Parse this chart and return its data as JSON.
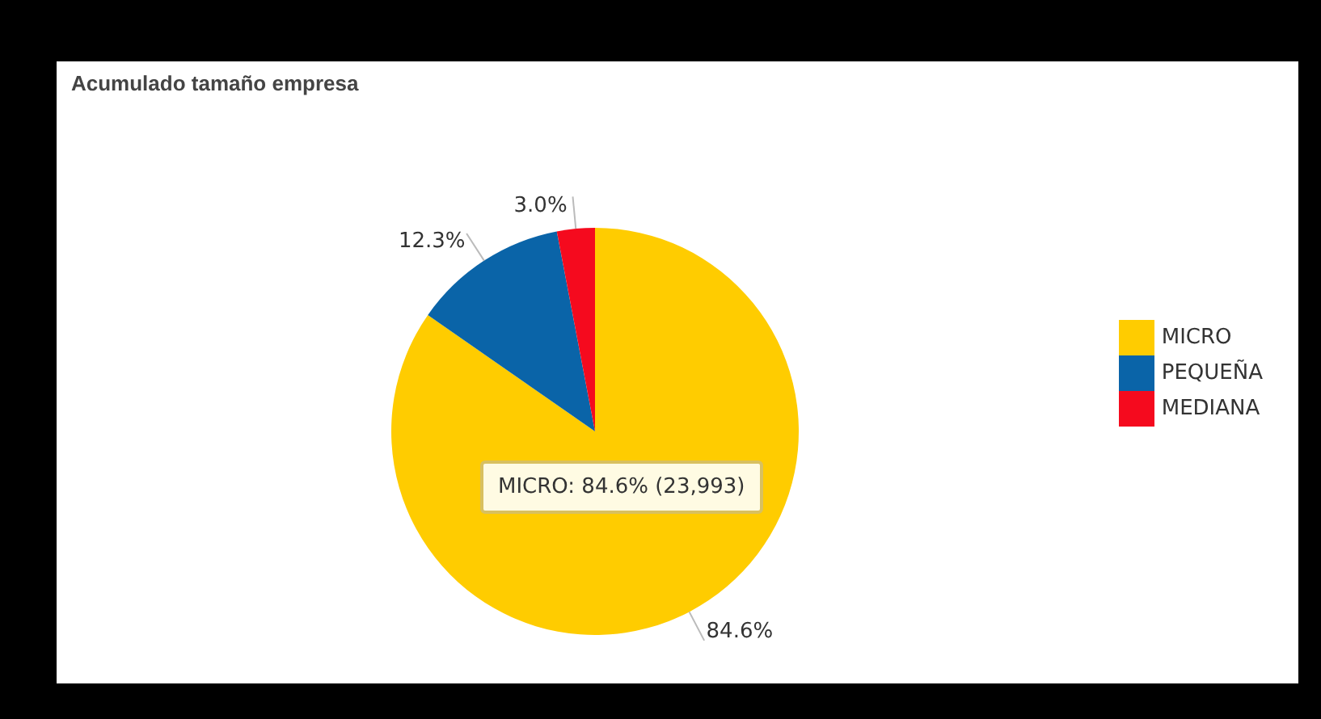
{
  "chart_data": {
    "type": "pie",
    "title": "Acumulado tamaño empresa",
    "categories": [
      "MICRO",
      "PEQUEÑA",
      "MEDIANA"
    ],
    "values": [
      84.6,
      12.3,
      3.0
    ],
    "colors": [
      "#ffcc00",
      "#0a64a8",
      "#f50a1e"
    ],
    "value_labels": [
      "84.6%",
      "12.3%",
      "3.0%"
    ],
    "legend": "right",
    "annotations": [
      "MICRO: 84.6% (23,993)"
    ]
  }
}
